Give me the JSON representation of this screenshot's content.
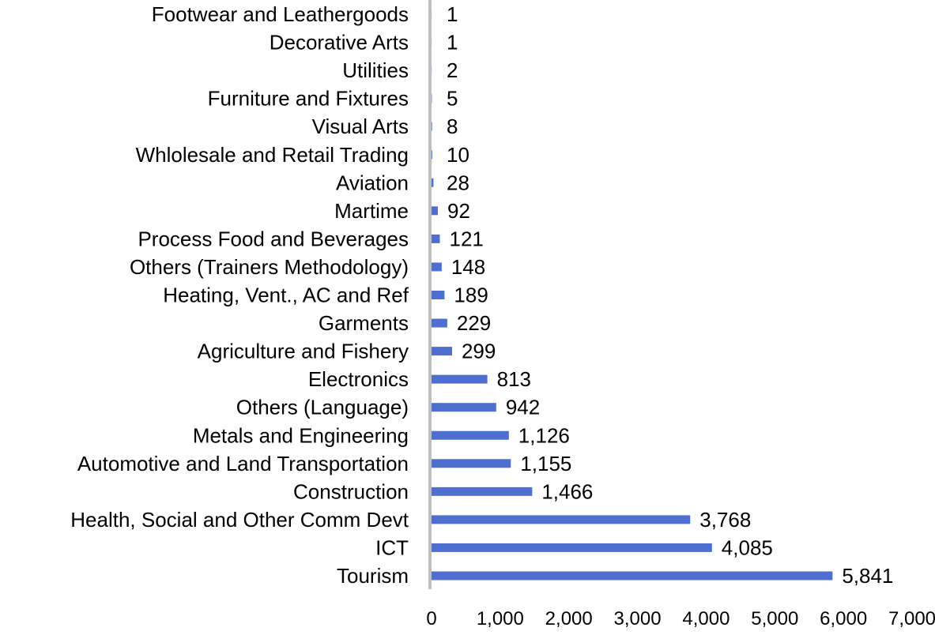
{
  "chart_data": {
    "type": "bar",
    "orientation": "horizontal",
    "title": "",
    "xlabel": "",
    "ylabel": "",
    "categories": [
      "Footwear and Leathergoods",
      "Decorative Arts",
      "Utilities",
      "Furniture and Fixtures",
      "Visual Arts",
      "Whlolesale and Retail Trading",
      "Aviation",
      "Martime",
      "Process Food and Beverages",
      "Others (Trainers Methodology)",
      "Heating, Vent., AC and Ref",
      "Garments",
      "Agriculture and Fishery",
      "Electronics",
      "Others (Language)",
      "Metals and Engineering",
      "Automotive and Land Transportation",
      "Construction",
      "Health, Social and Other Comm Devt",
      "ICT",
      "Tourism"
    ],
    "values": [
      1,
      1,
      2,
      5,
      8,
      10,
      28,
      92,
      121,
      148,
      189,
      229,
      299,
      813,
      942,
      1126,
      1155,
      1466,
      3768,
      4085,
      5841
    ],
    "value_labels": [
      "1",
      "1",
      "2",
      "5",
      "8",
      "10",
      "28",
      "92",
      "121",
      "148",
      "189",
      "229",
      "299",
      "813",
      "942",
      "1,126",
      "1,155",
      "1,466",
      "3,768",
      "4,085",
      "5,841"
    ],
    "xlim": [
      0,
      7000
    ],
    "xticks": [
      0,
      1000,
      2000,
      3000,
      4000,
      5000,
      6000,
      7000
    ],
    "xtick_labels": [
      "0",
      "1,000",
      "2,000",
      "3,000",
      "4,000",
      "5,000",
      "6,000",
      "7,000"
    ],
    "grid": false,
    "legend": "none",
    "colors": {
      "bar": "#4f6fd0",
      "axis": "#bfbfbf",
      "text": "#000000"
    }
  }
}
